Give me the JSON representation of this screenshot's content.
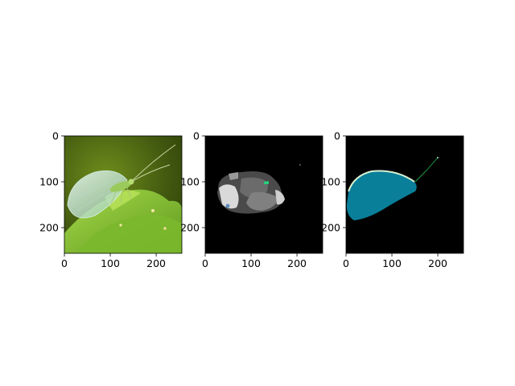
{
  "chart_data": [
    {
      "type": "image",
      "panel": "original",
      "image_width": 256,
      "image_height": 256,
      "xlim": [
        0,
        256
      ],
      "ylim": [
        256,
        0
      ],
      "xticks": [
        0,
        100,
        200
      ],
      "yticks": [
        0,
        100,
        200
      ],
      "xtick_labels": [
        "0",
        "100",
        "200"
      ],
      "ytick_labels": [
        "0",
        "100",
        "200"
      ],
      "subject": "green lacewing on a leaf",
      "colors": {
        "background": "#4f6a14",
        "leaf": "#8fc43a",
        "wing": "#cfe9e2"
      }
    },
    {
      "type": "image",
      "panel": "segmentation",
      "image_width": 256,
      "image_height": 256,
      "xlim": [
        0,
        256
      ],
      "ylim": [
        256,
        0
      ],
      "xticks": [
        0,
        100,
        200
      ],
      "yticks": [
        0,
        100,
        200
      ],
      "xtick_labels": [
        "0",
        "100",
        "200"
      ],
      "ytick_labels": [
        "0",
        "100",
        "200"
      ],
      "colors": {
        "background": "#000000",
        "region_dark": "#4a4a4a",
        "region_mid": "#808080",
        "region_light": "#d9d9d9",
        "accent": "#21d07a"
      }
    },
    {
      "type": "image",
      "panel": "mask",
      "image_width": 256,
      "image_height": 256,
      "xlim": [
        0,
        256
      ],
      "ylim": [
        256,
        0
      ],
      "xticks": [
        0,
        100,
        200
      ],
      "yticks": [
        0,
        100,
        200
      ],
      "xtick_labels": [
        "0",
        "100",
        "200"
      ],
      "ytick_labels": [
        "0",
        "100",
        "200"
      ],
      "colors": {
        "background": "#000000",
        "mask": "#0a7f9a",
        "edge": "#d8f0d0",
        "antenna": "#1fa84a"
      }
    }
  ]
}
